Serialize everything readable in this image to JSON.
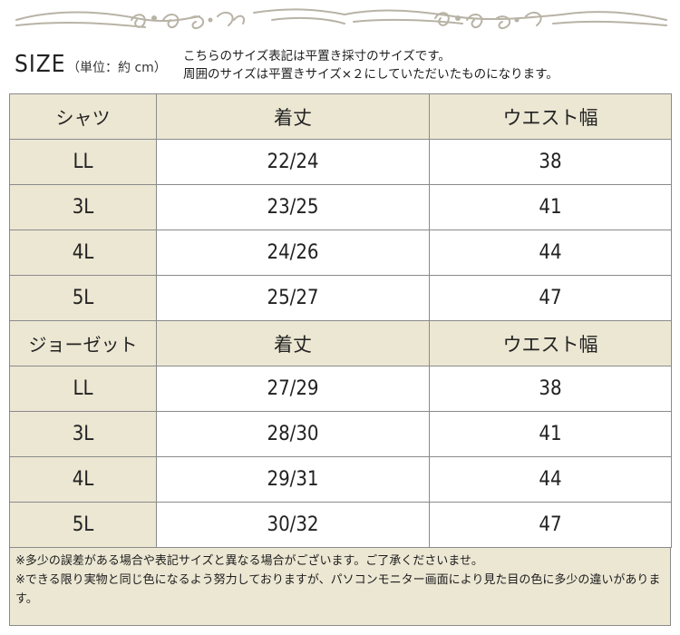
{
  "header": {
    "size_title": "SIZE",
    "unit_label": "（単位：約 cm）",
    "note_line1": "こちらのサイズ表記は平置き採寸のサイズです。",
    "note_line2": "周囲のサイズは平置きサイズ×２にしていただいたものになります。"
  },
  "tables": [
    {
      "category": "シャツ",
      "columns": [
        "着丈",
        "ウエスト幅"
      ],
      "rows": [
        {
          "size": "LL",
          "length": "22/24",
          "waist": "38"
        },
        {
          "size": "3L",
          "length": "23/25",
          "waist": "41"
        },
        {
          "size": "4L",
          "length": "24/26",
          "waist": "44"
        },
        {
          "size": "5L",
          "length": "25/27",
          "waist": "47"
        }
      ]
    },
    {
      "category": "ジョーゼット",
      "columns": [
        "着丈",
        "ウエスト幅"
      ],
      "rows": [
        {
          "size": "LL",
          "length": "27/29",
          "waist": "38"
        },
        {
          "size": "3L",
          "length": "28/30",
          "waist": "41"
        },
        {
          "size": "4L",
          "length": "29/31",
          "waist": "44"
        },
        {
          "size": "5L",
          "length": "30/32",
          "waist": "47"
        }
      ]
    }
  ],
  "footer": {
    "note1": "※多少の誤差がある場合や表記サイズと異なる場合がございます。ご了承くださいませ。",
    "note2": "※できる限り実物と同じ色になるよう努力しておりますが、パソコンモニター画面により見た目の色に多少の違いがあります。"
  },
  "colors": {
    "header_bg": "#ece7d3",
    "border": "#8a8a8a",
    "ornament": "#b8b3a6"
  }
}
